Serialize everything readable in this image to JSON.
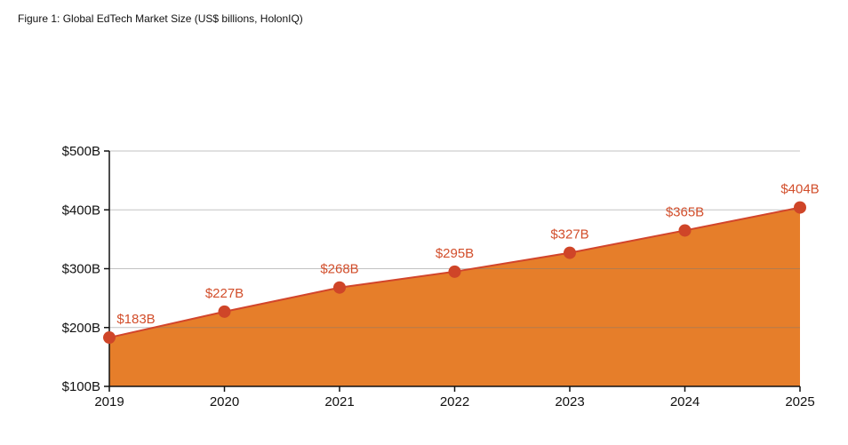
{
  "chart_data": {
    "type": "area",
    "title": "Figure 1: Global EdTech Market Size (US$ billions, HolonIQ)",
    "categories": [
      "2019",
      "2020",
      "2021",
      "2022",
      "2023",
      "2024",
      "2025"
    ],
    "values": [
      183,
      227,
      268,
      295,
      327,
      365,
      404
    ],
    "data_labels": [
      "$183B",
      "$227B",
      "$268B",
      "$295B",
      "$327B",
      "$365B",
      "$404B"
    ],
    "xlabel": "",
    "ylabel": "",
    "ylim": [
      100,
      500
    ],
    "yticks": [
      100,
      200,
      300,
      400,
      500
    ],
    "ytick_labels": [
      "$100B",
      "$200B",
      "$300B",
      "$400B",
      "$500B"
    ],
    "grid": true,
    "colors": {
      "area": "#e67e2a",
      "line": "#d2452b",
      "points": "#cf4528",
      "labels": "#d24e2b"
    }
  }
}
